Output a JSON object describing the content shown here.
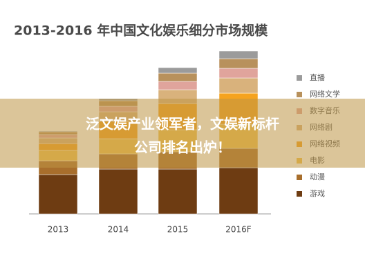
{
  "chart_data": {
    "type": "stacked-bar",
    "title": "2013-2016 年中国文化娱乐细分市场规模",
    "categories": [
      "2013",
      "2014",
      "2015",
      "2016F"
    ],
    "series": [
      {
        "name": "直播",
        "color": "#9b9b9b",
        "values": [
          1,
          3,
          8,
          11
        ]
      },
      {
        "name": "网络文学",
        "color": "#b8915c",
        "values": [
          4,
          8,
          12,
          14
        ]
      },
      {
        "name": "数字音乐",
        "color": "#e0a49c",
        "values": [
          5,
          8,
          12,
          14
        ]
      },
      {
        "name": "网络剧",
        "color": "#d9b27c",
        "values": [
          8,
          14,
          20,
          22
        ]
      },
      {
        "name": "网络视频",
        "color": "#f5a31e",
        "values": [
          10,
          25,
          38,
          45
        ]
      },
      {
        "name": "电影",
        "color": "#f2c24e",
        "values": [
          15,
          22,
          32,
          35
        ]
      },
      {
        "name": "动漫",
        "color": "#a86e2c",
        "values": [
          20,
          22,
          25,
          28
        ]
      },
      {
        "name": "游戏",
        "color": "#6e3c12",
        "values": [
          57,
          65,
          65,
          67
        ]
      }
    ]
  },
  "overlay": {
    "lines": [
      "泛文娱产业领军者，文娱新标杆",
      "公司排名出炉！"
    ]
  }
}
